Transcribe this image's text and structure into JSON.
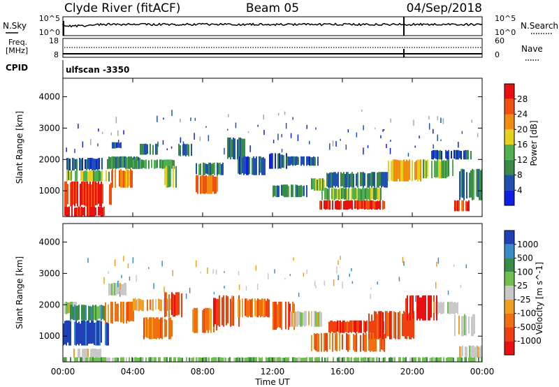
{
  "header": {
    "station": "Clyde River (fitACF)",
    "beam": "Beam 05",
    "date": "04/Sep/2018"
  },
  "top_panels": {
    "nsky_label": "N.Sky",
    "nsearch_label": "N.Search",
    "nsky_ticks": [
      "10^5",
      "10^0"
    ],
    "nsearch_ticks": [
      "10^5",
      "10^0"
    ],
    "freq_label_1": "Freq.",
    "freq_label_2": "[MHz]",
    "freq_ticks": [
      "18",
      "8"
    ],
    "nave_label": "Nave",
    "nave_ticks": [
      "60",
      "0"
    ],
    "cpid_label": "CPID",
    "cpid_value": "ulfscan -3350"
  },
  "colors": {
    "power_scale": [
      "#1020e0",
      "#2050b0",
      "#3a8a48",
      "#50b050",
      "#e8d020",
      "#f08c10",
      "#f05010",
      "#e81010"
    ],
    "velocity_scale": [
      "#2040b8",
      "#3a8ac8",
      "#3a8a48",
      "#70c050",
      "#c8c8c8",
      "#f0a020",
      "#f07010",
      "#f04010",
      "#e81010"
    ]
  },
  "chart_data": [
    {
      "type": "heatmap",
      "name": "power",
      "ylabel": "Slant Range [km]",
      "x_ticks": [
        "00:00",
        "04:00",
        "08:00",
        "12:00",
        "16:00",
        "20:00",
        "00:00"
      ],
      "xlim_hours": [
        0,
        24
      ],
      "y_ticks": [
        1000,
        2000,
        3000,
        4000
      ],
      "ylim": [
        180,
        4590
      ],
      "colorbar_label": "Power [dB]",
      "colorbar_ticks": [
        4,
        8,
        12,
        16,
        20,
        24,
        28
      ],
      "colorbar_range": [
        0,
        32
      ],
      "regions": [
        {
          "t": [
            0.0,
            2.4
          ],
          "r": [
            180,
            500
          ],
          "v": 30
        },
        {
          "t": [
            0.0,
            2.8
          ],
          "r": [
            500,
            1300
          ],
          "v": 28
        },
        {
          "t": [
            0.2,
            2.8
          ],
          "r": [
            1300,
            1650
          ],
          "v": 14
        },
        {
          "t": [
            0.2,
            2.6
          ],
          "r": [
            1650,
            2050
          ],
          "v": 6
        },
        {
          "t": [
            2.8,
            4.0
          ],
          "r": [
            1100,
            1700
          ],
          "v": 22
        },
        {
          "t": [
            2.6,
            4.4
          ],
          "r": [
            1700,
            2100
          ],
          "v": 10
        },
        {
          "t": [
            2.8,
            3.4
          ],
          "r": [
            2350,
            2550
          ],
          "v": 6
        },
        {
          "t": [
            4.4,
            5.4
          ],
          "r": [
            2150,
            2500
          ],
          "v": 8
        },
        {
          "t": [
            4.0,
            6.4
          ],
          "r": [
            1700,
            2000
          ],
          "v": 12
        },
        {
          "t": [
            5.8,
            6.6
          ],
          "r": [
            1100,
            1800
          ],
          "v": 14
        },
        {
          "t": [
            6.6,
            7.4
          ],
          "r": [
            2100,
            2500
          ],
          "v": 8
        },
        {
          "t": [
            7.6,
            9.0
          ],
          "r": [
            900,
            1500
          ],
          "v": 24
        },
        {
          "t": [
            7.6,
            9.2
          ],
          "r": [
            1500,
            1900
          ],
          "v": 10
        },
        {
          "t": [
            9.4,
            10.4
          ],
          "r": [
            2000,
            2700
          ],
          "v": 8
        },
        {
          "t": [
            10.0,
            11.6
          ],
          "r": [
            1500,
            2100
          ],
          "v": 6
        },
        {
          "t": [
            11.8,
            12.8
          ],
          "r": [
            1700,
            2200
          ],
          "v": 6
        },
        {
          "t": [
            12.8,
            14.6
          ],
          "r": [
            1800,
            2100
          ],
          "v": 6
        },
        {
          "t": [
            12.0,
            14.0
          ],
          "r": [
            800,
            1200
          ],
          "v": 10
        },
        {
          "t": [
            14.2,
            15.0
          ],
          "r": [
            1000,
            1400
          ],
          "v": 14
        },
        {
          "t": [
            14.6,
            18.4
          ],
          "r": [
            400,
            700
          ],
          "v": 30
        },
        {
          "t": [
            14.8,
            18.2
          ],
          "r": [
            700,
            1100
          ],
          "v": 14
        },
        {
          "t": [
            15.0,
            18.6
          ],
          "r": [
            1100,
            1600
          ],
          "v": 8
        },
        {
          "t": [
            18.6,
            20.6
          ],
          "r": [
            1300,
            2000
          ],
          "v": 20
        },
        {
          "t": [
            20.6,
            22.4
          ],
          "r": [
            1400,
            2000
          ],
          "v": 14
        },
        {
          "t": [
            21.0,
            23.4
          ],
          "r": [
            2000,
            2300
          ],
          "v": 6
        },
        {
          "t": [
            22.4,
            23.2
          ],
          "r": [
            350,
            700
          ],
          "v": 26
        },
        {
          "t": [
            22.6,
            24.0
          ],
          "r": [
            700,
            1700
          ],
          "v": 10
        }
      ]
    },
    {
      "type": "heatmap",
      "name": "velocity",
      "ylabel": "Slant Range [km]",
      "xlabel": "Time UT",
      "x_ticks": [
        "00:00",
        "04:00",
        "08:00",
        "12:00",
        "16:00",
        "20:00",
        "00:00"
      ],
      "xlim_hours": [
        0,
        24
      ],
      "y_ticks": [
        1000,
        2000,
        3000,
        4000
      ],
      "ylim": [
        180,
        4590
      ],
      "colorbar_label": "Velocity [m s^-1]",
      "colorbar_ticks": [
        "1000",
        "500",
        "100",
        "25",
        "-25",
        "-100",
        "-500",
        "-1000"
      ],
      "regions": [
        {
          "t": [
            0.0,
            0.8
          ],
          "r": [
            1700,
            2100
          ],
          "v": 4
        },
        {
          "t": [
            0.0,
            2.6
          ],
          "r": [
            700,
            1500
          ],
          "v": 0
        },
        {
          "t": [
            0.4,
            2.4
          ],
          "r": [
            1500,
            2000
          ],
          "v": 2
        },
        {
          "t": [
            0.6,
            2.2
          ],
          "r": [
            300,
            600
          ],
          "v": 4
        },
        {
          "t": [
            2.4,
            4.2
          ],
          "r": [
            1400,
            2100
          ],
          "v": 6
        },
        {
          "t": [
            2.6,
            3.6
          ],
          "r": [
            2300,
            2700
          ],
          "v": 4
        },
        {
          "t": [
            4.0,
            6.2
          ],
          "r": [
            1800,
            2200
          ],
          "v": 5
        },
        {
          "t": [
            4.6,
            6.2
          ],
          "r": [
            900,
            1600
          ],
          "v": 6
        },
        {
          "t": [
            5.8,
            6.8
          ],
          "r": [
            1600,
            2400
          ],
          "v": 7
        },
        {
          "t": [
            7.4,
            8.8
          ],
          "r": [
            1100,
            1900
          ],
          "v": 6
        },
        {
          "t": [
            8.6,
            10.2
          ],
          "r": [
            1300,
            2300
          ],
          "v": 7
        },
        {
          "t": [
            10.0,
            11.8
          ],
          "r": [
            1600,
            2200
          ],
          "v": 6
        },
        {
          "t": [
            12.0,
            13.4
          ],
          "r": [
            1200,
            2100
          ],
          "v": 7
        },
        {
          "t": [
            13.0,
            14.8
          ],
          "r": [
            1300,
            1800
          ],
          "v": 4
        },
        {
          "t": [
            14.2,
            18.4
          ],
          "r": [
            500,
            1100
          ],
          "v": 6
        },
        {
          "t": [
            15.2,
            18.4
          ],
          "r": [
            1100,
            1500
          ],
          "v": 7
        },
        {
          "t": [
            17.4,
            20.2
          ],
          "r": [
            900,
            1800
          ],
          "v": 7
        },
        {
          "t": [
            19.6,
            21.4
          ],
          "r": [
            1500,
            2300
          ],
          "v": 8
        },
        {
          "t": [
            21.2,
            22.6
          ],
          "r": [
            1700,
            2100
          ],
          "v": 4
        },
        {
          "t": [
            22.4,
            23.6
          ],
          "r": [
            1000,
            1700
          ],
          "v": 4
        },
        {
          "t": [
            22.6,
            24.0
          ],
          "r": [
            300,
            700
          ],
          "v": 4
        },
        {
          "t": [
            0.0,
            24.0
          ],
          "r": [
            180,
            330
          ],
          "v": 3
        }
      ]
    }
  ]
}
